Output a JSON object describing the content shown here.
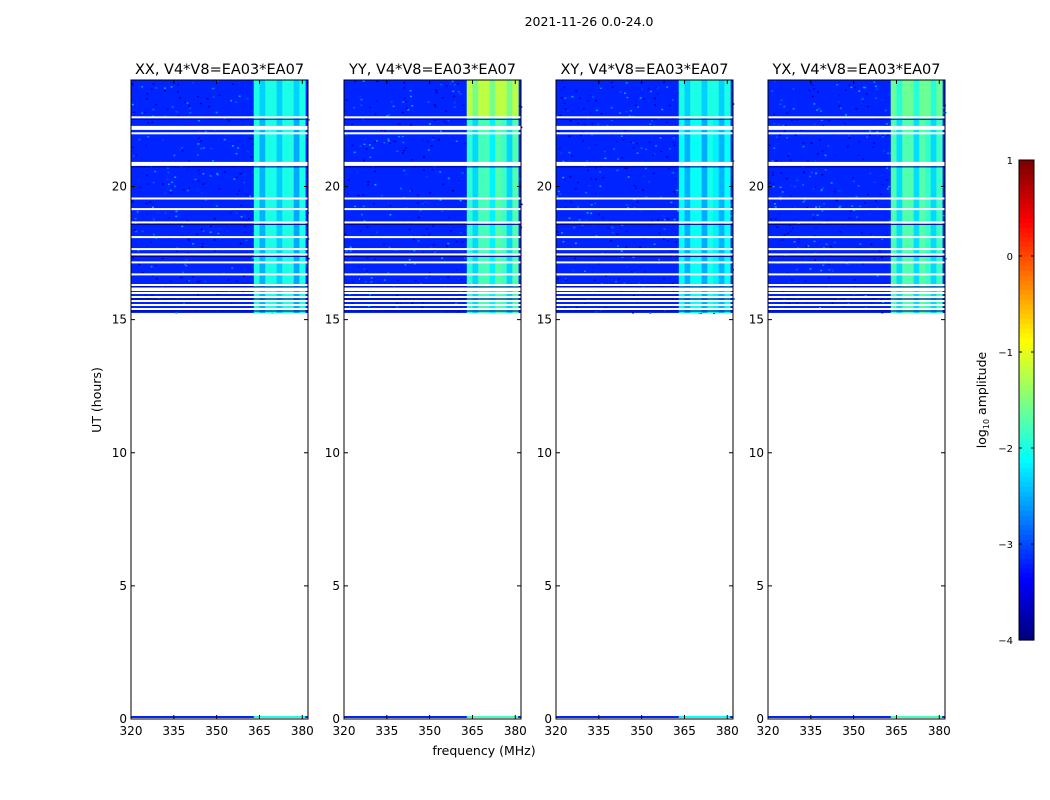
{
  "figure": {
    "suptitle": "2021-11-26 0.0-24.0",
    "xlabel": "frequency (MHz)",
    "ylabel": "UT (hours)"
  },
  "chart_data": {
    "type": "heatmap",
    "xlim": [
      320,
      382
    ],
    "ylim": [
      0,
      24
    ],
    "xticks": [
      320,
      335,
      350,
      365,
      380
    ],
    "yticks": [
      0,
      5,
      10,
      15,
      20
    ],
    "data_start_hours": 15.25,
    "rfi_band_mhz": [
      363,
      381
    ],
    "flagged_rows_hours": [
      15.4,
      15.55,
      15.7,
      15.85,
      16.0,
      16.15,
      16.3,
      16.7,
      17.15,
      17.45,
      17.65,
      18.1,
      18.65,
      19.15,
      19.55,
      20.85,
      22.0,
      22.2,
      22.6
    ],
    "panels": [
      {
        "title": "XX, V4*V8=EA03*EA07",
        "band_log_amplitude": -2.0,
        "top_band_log_amplitude": -2.0
      },
      {
        "title": "YY, V4*V8=EA03*EA07",
        "band_log_amplitude": -1.8,
        "top_band_log_amplitude": -1.2
      },
      {
        "title": "XY, V4*V8=EA03*EA07",
        "band_log_amplitude": -2.1,
        "top_band_log_amplitude": -2.0
      },
      {
        "title": "YX, V4*V8=EA03*EA07",
        "band_log_amplitude": -1.8,
        "top_band_log_amplitude": -1.6
      }
    ],
    "colorbar": {
      "label_prefix": "log",
      "label_subscript": "10",
      "label_suffix": " amplitude",
      "range": [
        -4,
        1
      ],
      "ticks": [
        1,
        0,
        -1,
        -2,
        -3,
        -4
      ],
      "tick_labels": [
        "1",
        "0",
        "−1",
        "−2",
        "−3",
        "−4"
      ],
      "colormap": "jet",
      "background_log_amplitude": -3.2
    }
  }
}
